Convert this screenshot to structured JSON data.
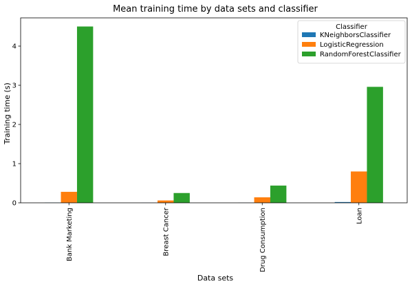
{
  "chart_data": {
    "type": "bar",
    "title": "Mean training time by data sets and classifier",
    "xlabel": "Data sets",
    "ylabel": "Training time (s)",
    "categories": [
      "Bank Marketing",
      "Breast Cancer",
      "Drug Consumption",
      "Loan"
    ],
    "series": [
      {
        "name": "KNeighborsClassifier",
        "color": "#1f77b4",
        "values": [
          0.005,
          0.002,
          0.003,
          0.02
        ]
      },
      {
        "name": "LogisticRegression",
        "color": "#ff7f0e",
        "values": [
          0.28,
          0.06,
          0.14,
          0.8
        ]
      },
      {
        "name": "RandomForestClassifier",
        "color": "#2ca02c",
        "values": [
          4.5,
          0.25,
          0.44,
          2.96
        ]
      }
    ],
    "ylim": [
      0,
      4.72
    ],
    "yticks": [
      0,
      1,
      2,
      3,
      4
    ],
    "legend": {
      "title": "Classifier",
      "position": "top-right"
    },
    "grid": false
  }
}
